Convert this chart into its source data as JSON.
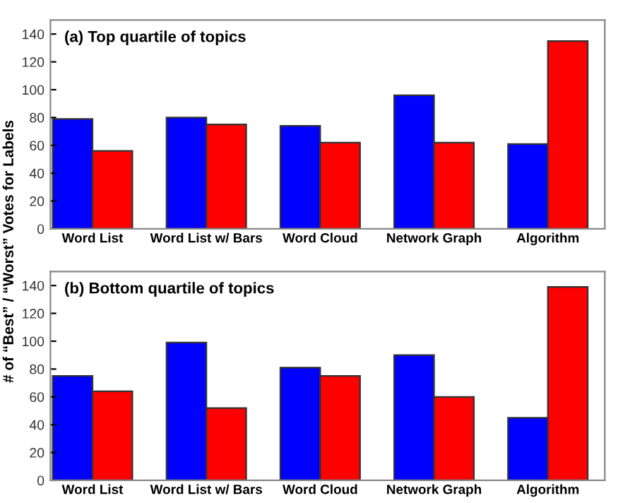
{
  "chart_data": [
    {
      "type": "bar",
      "title": "(a) Top quartile of topics",
      "ylabel": "# of “Best” / “Worst” Votes for Labels",
      "categories": [
        "Word List",
        "Word List w/ Bars",
        "Word Cloud",
        "Network Graph",
        "Algorithm"
      ],
      "series": [
        {
          "color": "#0000ff",
          "values": [
            79,
            80,
            74,
            96,
            61
          ]
        },
        {
          "color": "#ff0000",
          "values": [
            56,
            75,
            62,
            62,
            135
          ]
        }
      ],
      "ylim": [
        0,
        150
      ],
      "yticks": [
        0,
        20,
        40,
        60,
        80,
        100,
        120,
        140
      ],
      "grid": false,
      "legend": false
    },
    {
      "type": "bar",
      "title": "(b) Bottom quartile of topics",
      "categories": [
        "Word List",
        "Word List w/ Bars",
        "Word Cloud",
        "Network Graph",
        "Algorithm"
      ],
      "series": [
        {
          "color": "#0000ff",
          "values": [
            75,
            99,
            81,
            90,
            45
          ]
        },
        {
          "color": "#ff0000",
          "values": [
            64,
            52,
            75,
            60,
            139
          ]
        }
      ],
      "ylim": [
        0,
        150
      ],
      "yticks": [
        0,
        20,
        40,
        60,
        80,
        100,
        120,
        140
      ],
      "grid": false,
      "legend": false
    }
  ]
}
